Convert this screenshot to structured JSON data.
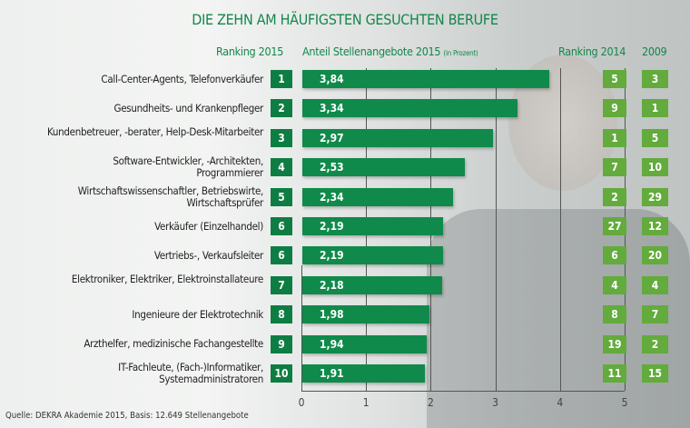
{
  "chart_data": {
    "type": "bar",
    "title": "DIE ZEHN AM HÄUFIGSTEN GESUCHTEN BERUFE",
    "headers": {
      "rank2015": "Ranking 2015",
      "share": "Anteil Stellenangebote 2015",
      "share_unit": "(in Prozent)",
      "rank2014": "Ranking 2014",
      "rank2009": "2009"
    },
    "categories": [
      "Call-Center-Agents, Telefonverkäufer",
      "Gesundheits- und Krankenpfleger",
      "Kundenbetreuer, -berater, Help-Desk-Mitarbeiter",
      "Software-Entwickler, -Architekten, Programmierer",
      "Wirtschaftswissenschaftler, Betriebswirte, Wirtschaftsprüfer",
      "Verkäufer (Einzelhandel)",
      "Vertriebs-, Verkaufsleiter",
      "Elektroniker, Elektriker, Elektroinstallateure",
      "Ingenieure der Elektrotechnik",
      "Arzthelfer, medizinische Fachangestellte",
      "IT-Fachleute, (Fach-)Informatiker, Systemadministratoren"
    ],
    "values": [
      3.84,
      3.34,
      2.97,
      2.53,
      2.34,
      2.19,
      2.19,
      2.18,
      1.98,
      1.94,
      1.91
    ],
    "value_labels": [
      "3,84",
      "3,34",
      "2,97",
      "2,53",
      "2,34",
      "2,19",
      "2,19",
      "2,18",
      "1,98",
      "1,94",
      "1,91"
    ],
    "rank2015": [
      "1",
      "2",
      "3",
      "4",
      "5",
      "6",
      "6",
      "7",
      "8",
      "9",
      "10"
    ],
    "rank2014": [
      "5",
      "9",
      "1",
      "7",
      "2",
      "27",
      "6",
      "4",
      "8",
      "19",
      "11"
    ],
    "rank2009": [
      "3",
      "1",
      "5",
      "10",
      "29",
      "12",
      "20",
      "4",
      "7",
      "2",
      "15"
    ],
    "xlim": [
      0,
      5
    ],
    "xticks": [
      "0",
      "1",
      "2",
      "3",
      "4",
      "5"
    ],
    "grid": true,
    "orientation": "horizontal",
    "colors": {
      "bar": "#0f8a4a",
      "rank2015": "#0e7d43",
      "rank_old": "#62ab3c",
      "title": "#13874a"
    }
  },
  "source": "Quelle: DEKRA Akademie 2015, Basis: 12.649 Stellenangebote"
}
